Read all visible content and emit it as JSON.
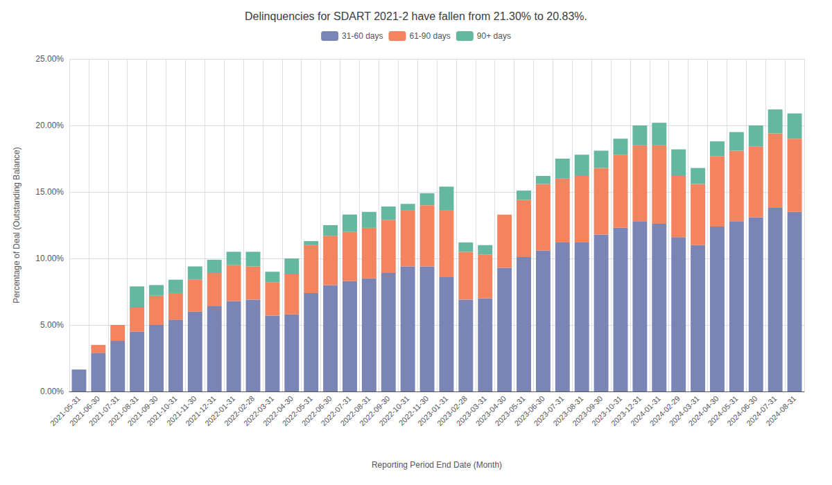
{
  "chart_data": {
    "type": "bar",
    "stacked": true,
    "title": "Delinquencies for SDART 2021-2 have fallen from 21.30% to 20.83%.",
    "xlabel": "Reporting Period End Date (Month)",
    "ylabel": "Percentage of Deal (Outstanding Balance)",
    "categories": [
      "2021-05-31",
      "2021-06-30",
      "2021-07-31",
      "2021-08-31",
      "2021-09-30",
      "2021-10-31",
      "2021-11-30",
      "2021-12-31",
      "2022-01-31",
      "2022-02-28",
      "2022-03-31",
      "2022-04-30",
      "2022-05-31",
      "2022-06-30",
      "2022-07-31",
      "2022-08-31",
      "2022-09-30",
      "2022-10-31",
      "2022-11-30",
      "2023-01-31",
      "2023-02-28",
      "2023-03-31",
      "2023-04-30",
      "2023-05-31",
      "2023-06-30",
      "2023-07-31",
      "2023-08-31",
      "2023-09-30",
      "2023-10-31",
      "2023-12-31",
      "2024-01-31",
      "2024-02-29",
      "2024-03-31",
      "2024-04-30",
      "2024-05-31",
      "2024-06-30",
      "2024-07-31",
      "2024-08-31"
    ],
    "series": [
      {
        "name": "31-60 days",
        "color": "#7b85b5",
        "values": [
          0.0165,
          0.029,
          0.038,
          0.045,
          0.05,
          0.054,
          0.06,
          0.064,
          0.068,
          0.069,
          0.057,
          0.058,
          0.074,
          0.08,
          0.083,
          0.085,
          0.089,
          0.094,
          0.094,
          0.086,
          0.069,
          0.07,
          0.093,
          0.101,
          0.106,
          0.112,
          0.112,
          0.118,
          0.123,
          0.128,
          0.126,
          0.116,
          0.11,
          0.124,
          0.128,
          0.131,
          0.138,
          0.135
        ]
      },
      {
        "name": "61-90 days",
        "color": "#f4845f",
        "values": [
          0.0,
          0.006,
          0.012,
          0.018,
          0.022,
          0.02,
          0.024,
          0.025,
          0.027,
          0.025,
          0.025,
          0.03,
          0.036,
          0.037,
          0.037,
          0.038,
          0.04,
          0.042,
          0.046,
          0.05,
          0.036,
          0.033,
          0.04,
          0.043,
          0.05,
          0.048,
          0.05,
          0.05,
          0.055,
          0.057,
          0.059,
          0.046,
          0.046,
          0.053,
          0.053,
          0.053,
          0.056,
          0.055
        ]
      },
      {
        "name": "90+ days",
        "color": "#65b8a0",
        "values": [
          0.0,
          0.0,
          0.0,
          0.016,
          0.008,
          0.01,
          0.01,
          0.01,
          0.01,
          0.011,
          0.008,
          0.012,
          0.003,
          0.008,
          0.013,
          0.012,
          0.01,
          0.005,
          0.009,
          0.018,
          0.007,
          0.007,
          0.0,
          0.007,
          0.006,
          0.015,
          0.016,
          0.013,
          0.012,
          0.015,
          0.017,
          0.02,
          0.012,
          0.011,
          0.014,
          0.016,
          0.018,
          0.019
        ]
      }
    ],
    "ylim": [
      0,
      0.25
    ],
    "yticks": [
      {
        "value": 0,
        "label": "0.00%"
      },
      {
        "value": 0.05,
        "label": "5.00%"
      },
      {
        "value": 0.1,
        "label": "10.00%"
      },
      {
        "value": 0.15,
        "label": "15.00%"
      },
      {
        "value": 0.2,
        "label": "20.00%"
      },
      {
        "value": 0.25,
        "label": "25.00%"
      }
    ],
    "grid": true,
    "legend": "top"
  }
}
